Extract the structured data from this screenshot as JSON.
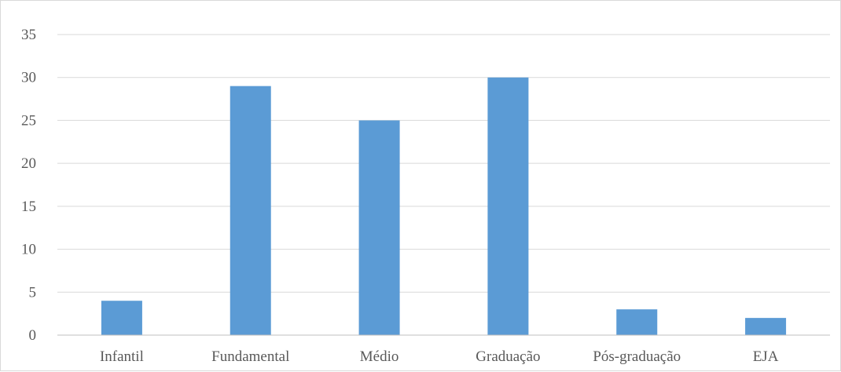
{
  "chart_data": {
    "type": "bar",
    "title": "",
    "xlabel": "",
    "ylabel": "",
    "categories": [
      "Infantil",
      "Fundamental",
      "Médio",
      "Graduação",
      "Pós-graduação",
      "EJA"
    ],
    "values": [
      4,
      29,
      25,
      30,
      3,
      2
    ],
    "ylim": [
      0,
      35
    ],
    "yticks": [
      0,
      5,
      10,
      15,
      20,
      25,
      30,
      35
    ],
    "grid": true,
    "legend": "none",
    "colors": {
      "bar": "#5b9bd5",
      "grid": "#d9d9d9",
      "axis": "#bfbfbf",
      "label": "#595959"
    }
  }
}
